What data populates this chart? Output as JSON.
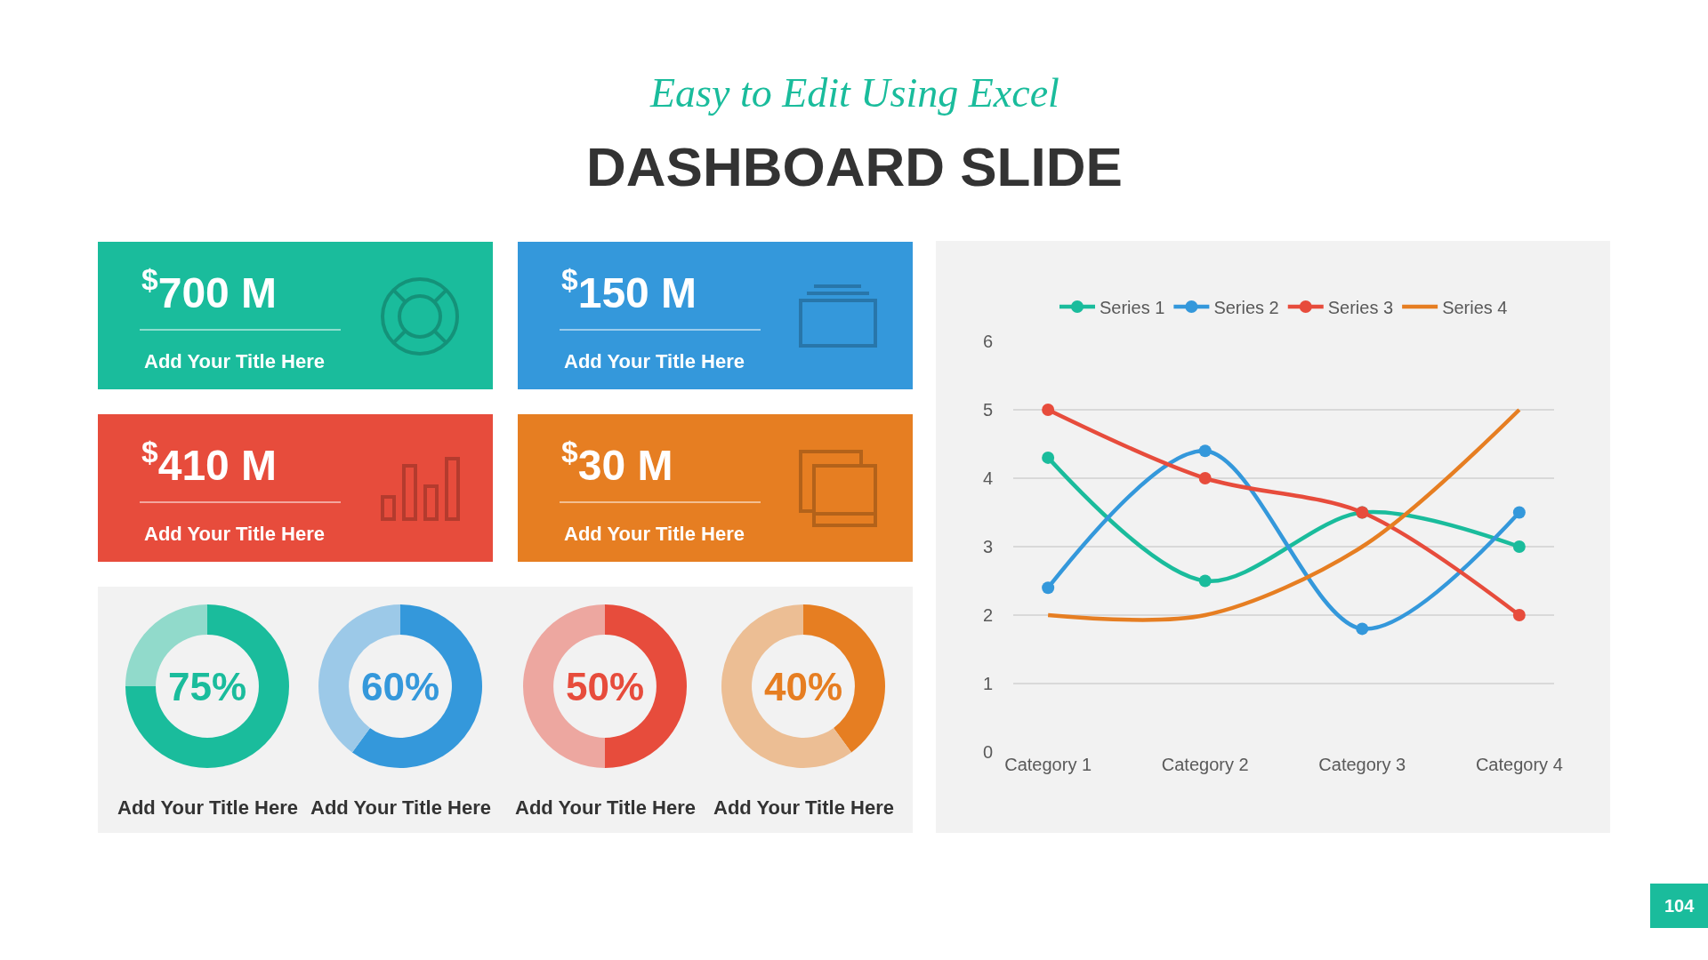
{
  "chart_data": [
    {
      "type": "other",
      "title": "DASHBOARD SLIDE",
      "subtitle": "Easy to Edit Using Excel",
      "color": "#1abc9c",
      "annotations": [
        "104"
      ]
    },
    {
      "type": "other",
      "title": "Add Your Title Here",
      "annotations": [
        "$^{$}$700 M"
      ],
      "color": "#1abc9c"
    },
    {
      "type": "other",
      "title": "Add Your Title Here",
      "annotations": [
        "$^{$}$150 M"
      ],
      "color": "#3498db"
    },
    {
      "type": "other",
      "title": "Add Your Title Here",
      "annotations": [
        "$^{$}$410 M"
      ],
      "color": "#e74c3c"
    },
    {
      "type": "other",
      "title": "Add Your Title Here",
      "annotations": [
        "$^{$}$30 M"
      ],
      "color": "#e67e22"
    },
    {
      "type": "donut",
      "title": "Add Your Title Here",
      "categories": [
        null,
        null
      ],
      "values": [
        75,
        25
      ],
      "colors": [
        "#1abc9c",
        "#91dacb"
      ],
      "annotations": [
        "75%"
      ]
    },
    {
      "type": "donut",
      "title": "Add Your Title Here",
      "categories": [
        null,
        null
      ],
      "values": [
        60,
        40
      ],
      "colors": [
        "#3498db",
        "#9cc9e8"
      ],
      "annotations": [
        "60%"
      ]
    },
    {
      "type": "donut",
      "title": "Add Your Title Here",
      "categories": [
        null,
        null
      ],
      "values": [
        50,
        50
      ],
      "colors": [
        "#e74c3c",
        "#eda7a0"
      ],
      "annotations": [
        "50%"
      ]
    },
    {
      "type": "donut",
      "title": "Add Your Title Here",
      "categories": [
        null,
        null
      ],
      "values": [
        40,
        60
      ],
      "colors": [
        "#e67e22",
        "#ecbe94"
      ],
      "annotations": [
        "40%"
      ]
    },
    {
      "type": "line",
      "categories": [
        "Category 1",
        "Category 2",
        "Category 3",
        "Category 4"
      ],
      "series": [
        {
          "name": "Series 1",
          "color": "#1abc9c",
          "values": [
            4.3,
            2.5,
            3.5,
            3.0
          ],
          "marker": "circle"
        },
        {
          "name": "Series 2",
          "color": "#3498db",
          "values": [
            2.4,
            4.4,
            1.8,
            3.5
          ],
          "marker": "circle"
        },
        {
          "name": "Series 3",
          "color": "#e74c3c",
          "values": [
            5,
            4,
            3.5,
            2
          ],
          "marker": "circle"
        },
        {
          "name": "Series 4",
          "color": "#e67e22",
          "values": [
            2,
            2,
            3,
            5
          ],
          "marker": "none"
        }
      ],
      "ylim": [
        0,
        6
      ],
      "yticks": [
        0,
        1,
        2,
        3,
        4,
        5,
        6
      ],
      "grid": "y",
      "legend": "top",
      "line_style": "solid"
    }
  ]
}
